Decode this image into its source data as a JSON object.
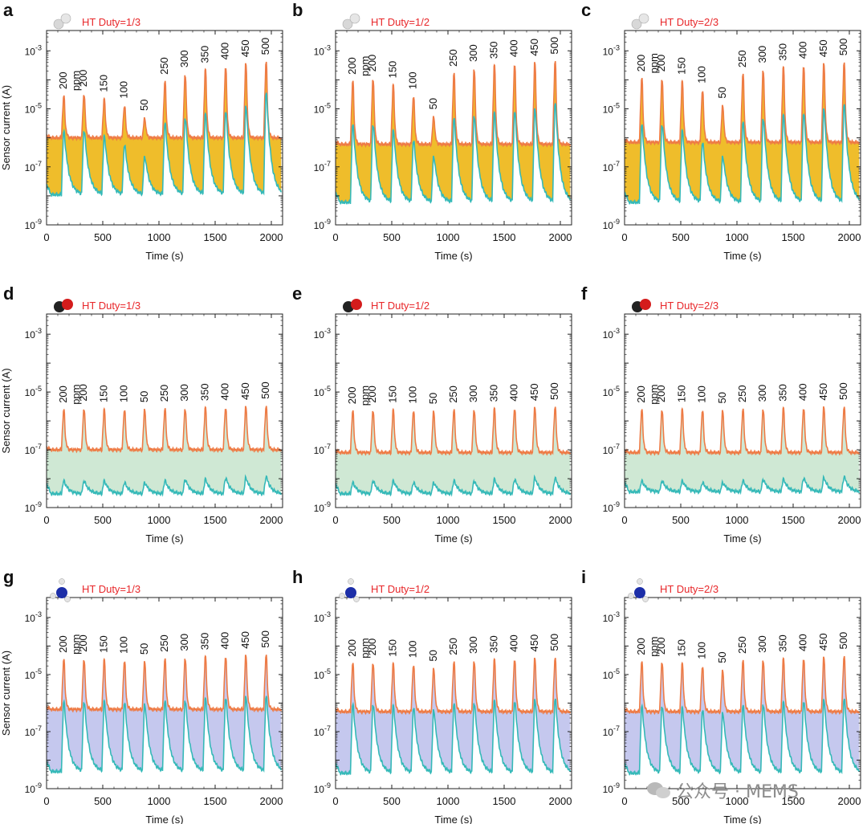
{
  "colors": {
    "on_line": "#ee7b45",
    "off_line": "#35b9b8",
    "fill_h2": "#efbd2b",
    "fill_co": "#cfe8d4",
    "fill_nh3": "#c5c8ee",
    "title": "#e8272a"
  },
  "watermark": "公众号 · MEMS",
  "chart_data": [
    {
      "panel": "a",
      "type": "area",
      "gas_icon": "hydrogen-molecule",
      "title": "HT Duty=1/3",
      "ylabel": "Sensor current (A)",
      "xlabel": "Time (s)",
      "yscale": "log",
      "ylim": [
        1e-09,
        0.005
      ],
      "xlim": [
        0,
        2100
      ],
      "xticks": [
        "0",
        "500",
        "1000",
        "1500",
        "2000"
      ],
      "yticks": [
        "10^-9",
        "10^-7",
        "10^-5",
        "10^-3"
      ],
      "pulse_times": [
        150,
        330,
        510,
        690,
        870,
        1050,
        1230,
        1410,
        1590,
        1770,
        1950
      ],
      "pulse_labels": [
        "200",
        "200",
        "150",
        "100",
        "50",
        "250",
        "300",
        "350",
        "400",
        "450",
        "500"
      ],
      "unit_label": "ppm",
      "series": [
        {
          "name": "",
          "role": "upper",
          "baseline": 1e-06,
          "peaks": [
            2.5e-05,
            3e-05,
            2e-05,
            1.2e-05,
            4.5e-06,
            8e-05,
            0.00014,
            0.0002,
            0.00026,
            0.00032,
            0.00038
          ]
        },
        {
          "name": "",
          "role": "lower",
          "baseline": 1.1e-08,
          "peaks": [
            1.5e-06,
            1.6e-06,
            1e-06,
            5e-07,
            2e-07,
            2.8e-06,
            4.2e-06,
            5.5e-06,
            7e-06,
            1e-05,
            3e-05
          ]
        }
      ]
    },
    {
      "panel": "b",
      "type": "area",
      "gas_icon": "hydrogen-molecule",
      "title": "HT Duty=1/2",
      "ylabel": "",
      "xlabel": "Time (s)",
      "yscale": "log",
      "ylim": [
        1e-09,
        0.005
      ],
      "xlim": [
        0,
        2100
      ],
      "xticks": [
        "0",
        "500",
        "1000",
        "1500",
        "2000"
      ],
      "yticks": [
        "10^-9",
        "10^-7",
        "10^-5",
        "10^-3"
      ],
      "pulse_times": [
        150,
        330,
        510,
        690,
        870,
        1050,
        1230,
        1410,
        1590,
        1770,
        1950
      ],
      "pulse_labels": [
        "200",
        "200",
        "150",
        "100",
        "50",
        "250",
        "300",
        "350",
        "400",
        "450",
        "500"
      ],
      "unit_label": "ppm",
      "series": [
        {
          "name": "",
          "role": "upper",
          "baseline": 6e-07,
          "peaks": [
            8e-05,
            0.0001,
            6e-05,
            2.5e-05,
            5e-06,
            0.00015,
            0.00022,
            0.00028,
            0.00032,
            0.00035,
            0.0004
          ]
        },
        {
          "name": "",
          "role": "lower",
          "baseline": 6e-09,
          "peaks": [
            2.5e-06,
            2.5e-06,
            1.5e-06,
            7e-07,
            2e-07,
            4e-06,
            5e-06,
            6e-06,
            7e-06,
            8e-06,
            1.3e-05
          ]
        }
      ]
    },
    {
      "panel": "c",
      "type": "area",
      "gas_icon": "hydrogen-molecule",
      "title": "HT Duty=2/3",
      "ylabel": "",
      "xlabel": "Time (s)",
      "yscale": "log",
      "ylim": [
        1e-09,
        0.005
      ],
      "xlim": [
        0,
        2100
      ],
      "xticks": [
        "0",
        "500",
        "1000",
        "1500",
        "2000"
      ],
      "yticks": [
        "10^-9",
        "10^-7",
        "10^-5",
        "10^-3"
      ],
      "pulse_times": [
        150,
        330,
        510,
        690,
        870,
        1050,
        1230,
        1410,
        1590,
        1770,
        1950
      ],
      "pulse_labels": [
        "200",
        "200",
        "150",
        "100",
        "50",
        "250",
        "300",
        "350",
        "400",
        "450",
        "500"
      ],
      "unit_label": "ppm",
      "series": [
        {
          "name": "",
          "role": "upper",
          "baseline": 7e-07,
          "peaks": [
            0.0001,
            0.0001,
            8e-05,
            4e-05,
            1.2e-05,
            0.00014,
            0.0002,
            0.00024,
            0.00028,
            0.00032,
            0.00036
          ]
        },
        {
          "name": "",
          "role": "lower",
          "baseline": 6e-09,
          "peaks": [
            2.5e-06,
            2.5e-06,
            1.5e-06,
            6e-07,
            2e-07,
            3e-06,
            4e-06,
            5e-06,
            6e-06,
            8e-06,
            1.2e-05
          ]
        }
      ]
    },
    {
      "panel": "d",
      "type": "area",
      "gas_icon": "carbon-monoxide-molecule",
      "title": "HT Duty=1/3",
      "ylabel": "Sensor current (A)",
      "xlabel": "Time (s)",
      "yscale": "log",
      "ylim": [
        1e-09,
        0.005
      ],
      "xlim": [
        0,
        2100
      ],
      "xticks": [
        "0",
        "500",
        "1000",
        "1500",
        "2000"
      ],
      "yticks": [
        "10^-9",
        "10^-7",
        "10^-5",
        "10^-3"
      ],
      "pulse_times": [
        150,
        330,
        510,
        690,
        870,
        1050,
        1230,
        1410,
        1590,
        1770,
        1950
      ],
      "pulse_labels": [
        "200",
        "200",
        "150",
        "100",
        "50",
        "250",
        "300",
        "350",
        "400",
        "450",
        "500"
      ],
      "unit_label": "ppm",
      "series": [
        {
          "name": "",
          "role": "upper",
          "baseline": 1e-07,
          "peaks": [
            2.2e-06,
            2.5e-06,
            2.3e-06,
            2.3e-06,
            2.3e-06,
            2.4e-06,
            2.5e-06,
            2.6e-06,
            2.7e-06,
            2.8e-06,
            3e-06
          ]
        },
        {
          "name": "",
          "role": "lower",
          "baseline": 3e-09,
          "peaks": [
            8e-09,
            8e-09,
            8e-09,
            7e-09,
            7e-09,
            8e-09,
            9e-09,
            9e-09,
            1e-08,
            1e-08,
            1.1e-08
          ]
        }
      ]
    },
    {
      "panel": "e",
      "type": "area",
      "gas_icon": "carbon-monoxide-molecule",
      "title": "HT Duty=1/2",
      "ylabel": "",
      "xlabel": "Time (s)",
      "yscale": "log",
      "ylim": [
        1e-09,
        0.005
      ],
      "xlim": [
        0,
        2100
      ],
      "xticks": [
        "0",
        "500",
        "1000",
        "1500",
        "2000"
      ],
      "yticks": [
        "10^-9",
        "10^-7",
        "10^-5",
        "10^-3"
      ],
      "pulse_times": [
        150,
        330,
        510,
        690,
        870,
        1050,
        1230,
        1410,
        1590,
        1770,
        1950
      ],
      "pulse_labels": [
        "200",
        "200",
        "150",
        "100",
        "50",
        "250",
        "300",
        "350",
        "400",
        "450",
        "500"
      ],
      "unit_label": "ppm",
      "series": [
        {
          "name": "",
          "role": "upper",
          "baseline": 8e-08,
          "peaks": [
            2e-06,
            2.2e-06,
            2.2e-06,
            2.1e-06,
            2e-06,
            2.2e-06,
            2.3e-06,
            2.4e-06,
            2.5e-06,
            2.6e-06,
            2.8e-06
          ]
        },
        {
          "name": "",
          "role": "lower",
          "baseline": 3e-09,
          "peaks": [
            7e-09,
            8e-09,
            8e-09,
            7e-09,
            7e-09,
            8e-09,
            8e-09,
            9e-09,
            9e-09,
            1e-08,
            1e-08
          ]
        }
      ]
    },
    {
      "panel": "f",
      "type": "area",
      "gas_icon": "carbon-monoxide-molecule",
      "title": "HT Duty=2/3",
      "ylabel": "",
      "xlabel": "Time (s)",
      "yscale": "log",
      "ylim": [
        1e-09,
        0.005
      ],
      "xlim": [
        0,
        2100
      ],
      "xticks": [
        "0",
        "500",
        "1000",
        "1500",
        "2000"
      ],
      "yticks": [
        "10^-9",
        "10^-7",
        "10^-5",
        "10^-3"
      ],
      "pulse_times": [
        150,
        330,
        510,
        690,
        870,
        1050,
        1230,
        1410,
        1590,
        1770,
        1950
      ],
      "pulse_labels": [
        "200",
        "200",
        "150",
        "100",
        "50",
        "250",
        "300",
        "350",
        "400",
        "450",
        "500"
      ],
      "unit_label": "ppm",
      "series": [
        {
          "name": "",
          "role": "upper",
          "baseline": 8e-08,
          "peaks": [
            2.2e-06,
            2.3e-06,
            2.3e-06,
            2.2e-06,
            2.1e-06,
            2.3e-06,
            2.4e-06,
            2.5e-06,
            2.6e-06,
            2.7e-06,
            2.8e-06
          ]
        },
        {
          "name": "",
          "role": "lower",
          "baseline": 3.5e-09,
          "peaks": [
            8e-09,
            8e-09,
            8e-09,
            7e-09,
            7e-09,
            8e-09,
            9e-09,
            9e-09,
            1e-08,
            1e-08,
            1.1e-08
          ]
        }
      ]
    },
    {
      "panel": "g",
      "type": "area",
      "gas_icon": "ammonia-molecule",
      "title": "HT Duty=1/3",
      "ylabel": "Sensor current (A)",
      "xlabel": "Time (s)",
      "yscale": "log",
      "ylim": [
        1e-09,
        0.005
      ],
      "xlim": [
        0,
        2100
      ],
      "xticks": [
        "0",
        "500",
        "1000",
        "1500",
        "2000"
      ],
      "yticks": [
        "10^-9",
        "10^-7",
        "10^-5",
        "10^-3"
      ],
      "pulse_times": [
        150,
        330,
        510,
        690,
        870,
        1050,
        1230,
        1410,
        1590,
        1770,
        1950
      ],
      "pulse_labels": [
        "200",
        "200",
        "150",
        "100",
        "50",
        "250",
        "300",
        "350",
        "400",
        "450",
        "500"
      ],
      "unit_label": "ppm",
      "series": [
        {
          "name": "",
          "role": "upper",
          "baseline": 6e-07,
          "peaks": [
            3e-05,
            3.2e-05,
            3e-05,
            2.8e-05,
            2.6e-05,
            3.2e-05,
            3.5e-05,
            3.8e-05,
            4e-05,
            4.2e-05,
            4.5e-05
          ]
        },
        {
          "name": "",
          "role": "lower",
          "baseline": 4e-09,
          "peaks": [
            1e-06,
            1e-06,
            1e-06,
            9e-07,
            8e-07,
            1e-06,
            1.1e-06,
            1.2e-06,
            1.3e-06,
            1.4e-06,
            1.5e-06
          ]
        }
      ]
    },
    {
      "panel": "h",
      "type": "area",
      "gas_icon": "ammonia-molecule",
      "title": "HT Duty=1/2",
      "ylabel": "",
      "xlabel": "Time (s)",
      "yscale": "log",
      "ylim": [
        1e-09,
        0.005
      ],
      "xlim": [
        0,
        2100
      ],
      "xticks": [
        "0",
        "500",
        "1000",
        "1500",
        "2000"
      ],
      "yticks": [
        "10^-9",
        "10^-7",
        "10^-5",
        "10^-3"
      ],
      "pulse_times": [
        150,
        330,
        510,
        690,
        870,
        1050,
        1230,
        1410,
        1590,
        1770,
        1950
      ],
      "pulse_labels": [
        "200",
        "200",
        "150",
        "100",
        "50",
        "250",
        "300",
        "350",
        "400",
        "450",
        "500"
      ],
      "unit_label": "ppm",
      "series": [
        {
          "name": "",
          "role": "upper",
          "baseline": 5e-07,
          "peaks": [
            2.2e-05,
            2.4e-05,
            2.2e-05,
            2e-05,
            1.5e-05,
            2.5e-05,
            2.8e-05,
            3e-05,
            3.2e-05,
            3.3e-05,
            3.5e-05
          ]
        },
        {
          "name": "",
          "role": "lower",
          "baseline": 3.5e-09,
          "peaks": [
            8e-07,
            8e-07,
            7e-07,
            6e-07,
            5e-07,
            8e-07,
            9e-07,
            1e-06,
            1e-06,
            1.1e-06,
            1.2e-06
          ]
        }
      ]
    },
    {
      "panel": "i",
      "type": "area",
      "gas_icon": "ammonia-molecule",
      "title": "HT Duty=2/3",
      "ylabel": "",
      "xlabel": "Time (s)",
      "yscale": "log",
      "ylim": [
        1e-09,
        0.005
      ],
      "xlim": [
        0,
        2100
      ],
      "xticks": [
        "0",
        "500",
        "1000",
        "1500",
        "2000"
      ],
      "yticks": [
        "10^-9",
        "10^-7",
        "10^-5",
        "10^-3"
      ],
      "pulse_times": [
        150,
        330,
        510,
        690,
        870,
        1050,
        1230,
        1410,
        1590,
        1770,
        1950
      ],
      "pulse_labels": [
        "200",
        "200",
        "150",
        "100",
        "50",
        "250",
        "300",
        "350",
        "400",
        "450",
        "500"
      ],
      "unit_label": "ppm",
      "series": [
        {
          "name": "",
          "role": "upper",
          "baseline": 5e-07,
          "peaks": [
            2.5e-05,
            2.6e-05,
            2.2e-05,
            1.8e-05,
            1.3e-05,
            2.8e-05,
            3e-05,
            3.2e-05,
            3.4e-05,
            3.6e-05,
            4e-05
          ]
        },
        {
          "name": "",
          "role": "lower",
          "baseline": 3.5e-09,
          "peaks": [
            7e-07,
            7e-07,
            6e-07,
            5e-07,
            4e-07,
            7e-07,
            8e-07,
            9e-07,
            1e-06,
            1.1e-06,
            1.2e-06
          ]
        }
      ]
    }
  ]
}
